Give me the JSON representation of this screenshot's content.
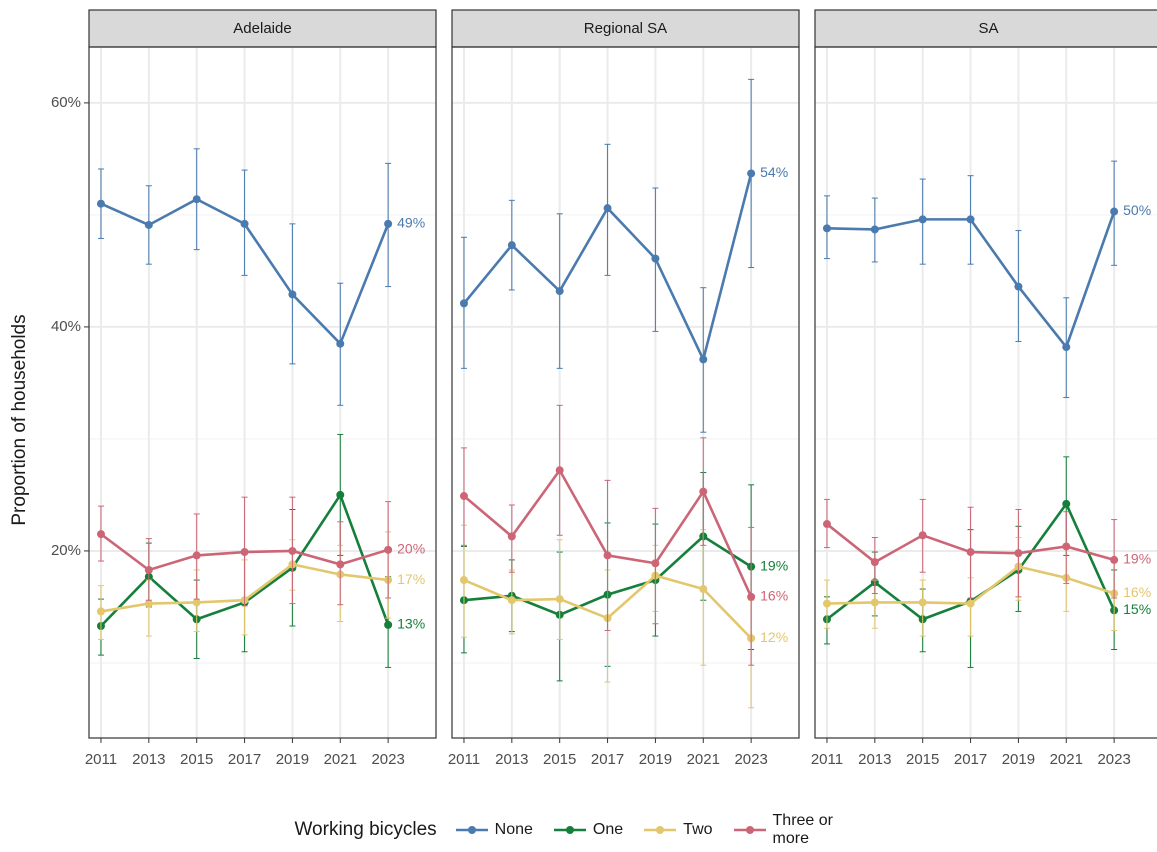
{
  "chart_data": {
    "type": "line",
    "y_label": "Proportion of households",
    "legend_title": "Working bicycles",
    "x": [
      2011,
      2013,
      2015,
      2017,
      2019,
      2021,
      2023
    ],
    "xlim": [
      2010.5,
      2025
    ],
    "xticks": [
      2011,
      2013,
      2015,
      2017,
      2019,
      2021,
      2023
    ],
    "ylim": [
      3.3,
      64.9
    ],
    "yticks": [
      {
        "value": 20,
        "label": "20%"
      },
      {
        "value": 40,
        "label": "40%"
      },
      {
        "value": 60,
        "label": "60%"
      }
    ],
    "minor_yticks": [
      10,
      30,
      50
    ],
    "grid": true,
    "series": [
      {
        "name": "None",
        "color": "#4a7aae"
      },
      {
        "name": "One",
        "color": "#157f3b"
      },
      {
        "name": "Two",
        "color": "#e3c76c"
      },
      {
        "name": "Three or more",
        "color": "#cc6677"
      }
    ],
    "facets": [
      {
        "title": "Adelaide",
        "series": [
          {
            "values": [
              51.0,
              49.1,
              51.4,
              49.2,
              42.9,
              38.5,
              49.2
            ],
            "low": [
              47.9,
              45.6,
              46.9,
              44.6,
              36.7,
              33.0,
              43.6
            ],
            "high": [
              54.1,
              52.6,
              55.9,
              54.0,
              49.2,
              43.9,
              54.6
            ],
            "value_labels": [
              null,
              null,
              null,
              null,
              null,
              null,
              "49%"
            ]
          },
          {
            "values": [
              13.3,
              17.7,
              13.9,
              15.4,
              18.5,
              25.0,
              13.4
            ],
            "low": [
              10.7,
              15.0,
              10.4,
              11.0,
              13.3,
              19.6,
              9.6
            ],
            "high": [
              15.7,
              20.7,
              17.4,
              20.1,
              23.7,
              30.4,
              17.7
            ],
            "value_labels": [
              null,
              null,
              null,
              null,
              null,
              null,
              "13%"
            ]
          },
          {
            "values": [
              14.6,
              15.3,
              15.4,
              15.6,
              18.8,
              17.9,
              17.4
            ],
            "low": [
              12.1,
              12.4,
              12.8,
              12.5,
              16.5,
              13.7,
              14.0
            ],
            "high": [
              16.9,
              17.4,
              18.3,
              19.2,
              21.0,
              20.5,
              21.7
            ],
            "value_labels": [
              null,
              null,
              null,
              null,
              null,
              null,
              "17%"
            ]
          },
          {
            "values": [
              21.5,
              18.3,
              19.6,
              19.9,
              20.0,
              18.8,
              20.1
            ],
            "low": [
              19.1,
              15.6,
              15.7,
              15.1,
              15.3,
              15.2,
              15.8
            ],
            "high": [
              24.0,
              21.1,
              23.3,
              24.8,
              24.8,
              22.6,
              24.4
            ],
            "value_labels": [
              null,
              null,
              null,
              null,
              null,
              null,
              "20%"
            ]
          }
        ]
      },
      {
        "title": "Regional SA",
        "series": [
          {
            "values": [
              42.1,
              47.3,
              43.2,
              50.6,
              46.1,
              37.1,
              53.7
            ],
            "low": [
              36.3,
              43.3,
              36.3,
              44.6,
              39.6,
              30.6,
              45.3
            ],
            "high": [
              48.0,
              51.3,
              50.1,
              56.3,
              52.4,
              43.5,
              62.1
            ],
            "value_labels": [
              null,
              null,
              null,
              null,
              null,
              null,
              "54%"
            ]
          },
          {
            "values": [
              15.6,
              16.0,
              14.3,
              16.1,
              17.4,
              21.3,
              18.6
            ],
            "low": [
              10.9,
              12.8,
              8.4,
              9.7,
              12.4,
              15.6,
              11.2
            ],
            "high": [
              20.4,
              19.2,
              19.9,
              22.5,
              22.4,
              27.0,
              25.9
            ],
            "value_labels": [
              null,
              null,
              null,
              null,
              null,
              null,
              "19%"
            ]
          },
          {
            "values": [
              17.4,
              15.6,
              15.7,
              14.0,
              17.8,
              16.6,
              12.2
            ],
            "low": [
              12.3,
              12.6,
              12.1,
              8.3,
              14.6,
              9.8,
              6.0
            ],
            "high": [
              22.3,
              18.3,
              21.0,
              18.3,
              20.5,
              21.9,
              15.6
            ],
            "value_labels": [
              null,
              null,
              null,
              null,
              null,
              null,
              "12%"
            ]
          },
          {
            "values": [
              24.9,
              21.3,
              27.2,
              19.6,
              18.9,
              25.3,
              15.9
            ],
            "low": [
              20.5,
              18.1,
              21.4,
              12.9,
              13.5,
              20.5,
              9.8
            ],
            "high": [
              29.2,
              24.1,
              33.0,
              26.3,
              23.8,
              30.1,
              22.1
            ],
            "value_labels": [
              null,
              null,
              null,
              null,
              null,
              null,
              "16%"
            ]
          }
        ]
      },
      {
        "title": "SA",
        "series": [
          {
            "values": [
              48.8,
              48.7,
              49.6,
              49.6,
              43.6,
              38.2,
              50.3
            ],
            "low": [
              46.1,
              45.8,
              45.6,
              45.6,
              38.7,
              33.7,
              45.5
            ],
            "high": [
              51.7,
              51.5,
              53.2,
              53.5,
              48.6,
              42.6,
              54.8
            ],
            "value_labels": [
              null,
              null,
              null,
              null,
              null,
              null,
              "50%"
            ]
          },
          {
            "values": [
              13.9,
              17.2,
              13.9,
              15.5,
              18.3,
              24.2,
              14.7
            ],
            "low": [
              11.7,
              14.2,
              11.0,
              9.6,
              14.6,
              19.6,
              11.2
            ],
            "high": [
              15.9,
              19.9,
              16.6,
              21.9,
              22.2,
              28.4,
              18.3
            ],
            "value_labels": [
              null,
              null,
              null,
              null,
              null,
              null,
              "15%"
            ]
          },
          {
            "values": [
              15.3,
              15.4,
              15.4,
              15.3,
              18.6,
              17.6,
              16.2
            ],
            "low": [
              13.1,
              13.1,
              12.4,
              12.4,
              15.6,
              14.6,
              12.9
            ],
            "high": [
              17.4,
              17.4,
              17.4,
              17.6,
              21.2,
              20.5,
              19.2
            ],
            "value_labels": [
              null,
              null,
              null,
              null,
              null,
              null,
              "16%"
            ]
          },
          {
            "values": [
              22.4,
              19.0,
              21.4,
              19.9,
              19.8,
              20.4,
              19.2
            ],
            "low": [
              20.3,
              16.2,
              18.1,
              15.8,
              15.9,
              17.1,
              15.8
            ],
            "high": [
              24.6,
              21.2,
              24.6,
              23.9,
              23.7,
              23.5,
              22.8
            ],
            "value_labels": [
              null,
              null,
              null,
              null,
              null,
              null,
              "19%"
            ]
          }
        ]
      }
    ]
  }
}
